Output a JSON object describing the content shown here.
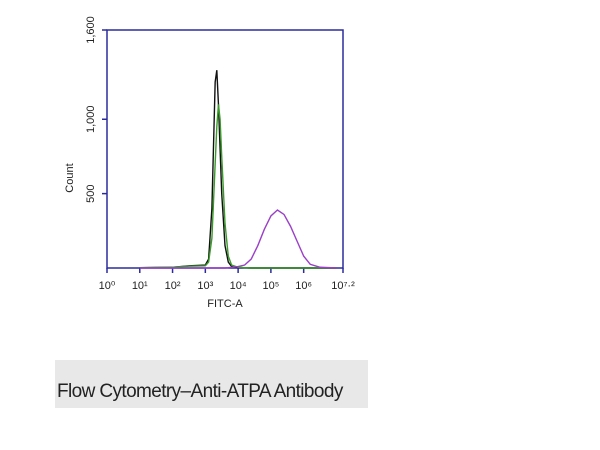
{
  "chart_data": {
    "type": "line",
    "caption": "Flow Cytometry–Anti-ATPA Antibody",
    "x_label": "FITC-A",
    "y_label": "Count",
    "x_scale": "log",
    "xlim": [
      1,
      15848932
    ],
    "ylim": [
      0,
      1600
    ],
    "xticks": [
      {
        "value": 1,
        "label": "10⁰"
      },
      {
        "value": 10,
        "label": "10¹"
      },
      {
        "value": 100,
        "label": "10²"
      },
      {
        "value": 1000,
        "label": "10³"
      },
      {
        "value": 10000,
        "label": "10⁴"
      },
      {
        "value": 100000,
        "label": "10⁵"
      },
      {
        "value": 1000000,
        "label": "10⁶"
      },
      {
        "value": 15848932,
        "label": "10⁷·²"
      }
    ],
    "yticks": [
      500,
      {
        "value": 1000,
        "label": "1,000"
      },
      {
        "value": 1600,
        "label": "1,600"
      }
    ],
    "axis_color": "#2b2b9e",
    "x": [
      10,
      100,
      316,
      1000,
      1259,
      1585,
      1995,
      2239,
      2512,
      2818,
      3162,
      3981,
      5012,
      6310,
      10000,
      15849,
      25119,
      39811,
      63096,
      100000,
      158489,
      251189,
      398107,
      630957,
      1000000,
      1584893,
      3162278,
      10000000
    ],
    "series": [
      {
        "color": "#111111",
        "values": [
          2,
          5,
          15,
          20,
          60,
          400,
          1250,
          1330,
          1100,
          800,
          500,
          150,
          40,
          10,
          3,
          1,
          0,
          0,
          0,
          0,
          0,
          0,
          0,
          0,
          0,
          0,
          0,
          0
        ]
      },
      {
        "color": "#3a9a2a",
        "values": [
          2,
          5,
          12,
          15,
          40,
          200,
          700,
          950,
          1100,
          1000,
          750,
          300,
          80,
          20,
          5,
          2,
          0,
          0,
          0,
          0,
          0,
          0,
          0,
          0,
          0,
          0,
          0,
          0
        ]
      },
      {
        "color": "#9b3fc8",
        "values": [
          0,
          0,
          0,
          0,
          0,
          0,
          0,
          0,
          0,
          0,
          0,
          0,
          2,
          5,
          10,
          20,
          60,
          150,
          260,
          350,
          390,
          360,
          280,
          180,
          80,
          25,
          5,
          0
        ]
      }
    ]
  }
}
